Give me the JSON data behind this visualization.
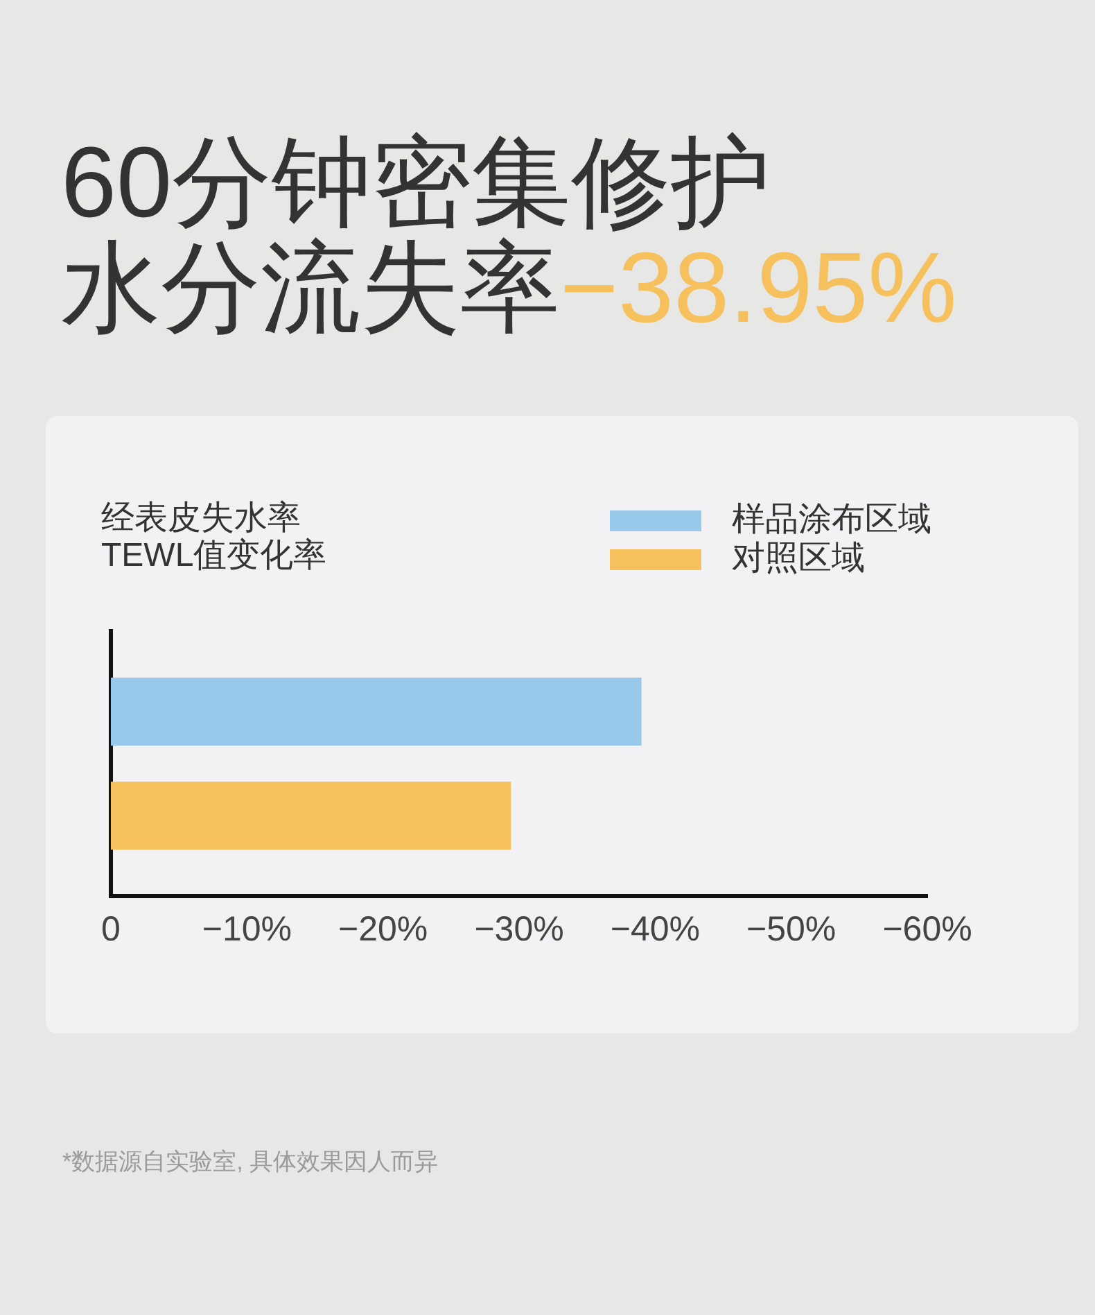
{
  "chart_data": {
    "type": "bar",
    "orientation": "horizontal",
    "title": "60分钟密集修护",
    "subtitle": "水分流失率",
    "ylabel": "经表皮失水率\nTEWL值变化率",
    "annotations": [
      "−38.95%",
      "*数据源自实验室, 具体效果因人而异"
    ],
    "categories": [
      null
    ],
    "series": [
      {
        "name": "样品涂布区域",
        "color": "#98c9eb",
        "values": [
          -39
        ]
      },
      {
        "name": "对照区域",
        "color": "#f6c05c",
        "values": [
          -29.4
        ]
      }
    ],
    "xlim": [
      0,
      -60
    ],
    "xticks": [
      0,
      {
        "value": -10,
        "label": "−10%"
      },
      {
        "value": -20,
        "label": "−20%"
      },
      {
        "value": -30,
        "label": "−30%"
      },
      {
        "value": -40,
        "label": "−40%"
      },
      {
        "value": -50,
        "label": "−50%"
      },
      {
        "value": -60,
        "label": "−60%"
      }
    ],
    "legend": "top right"
  }
}
